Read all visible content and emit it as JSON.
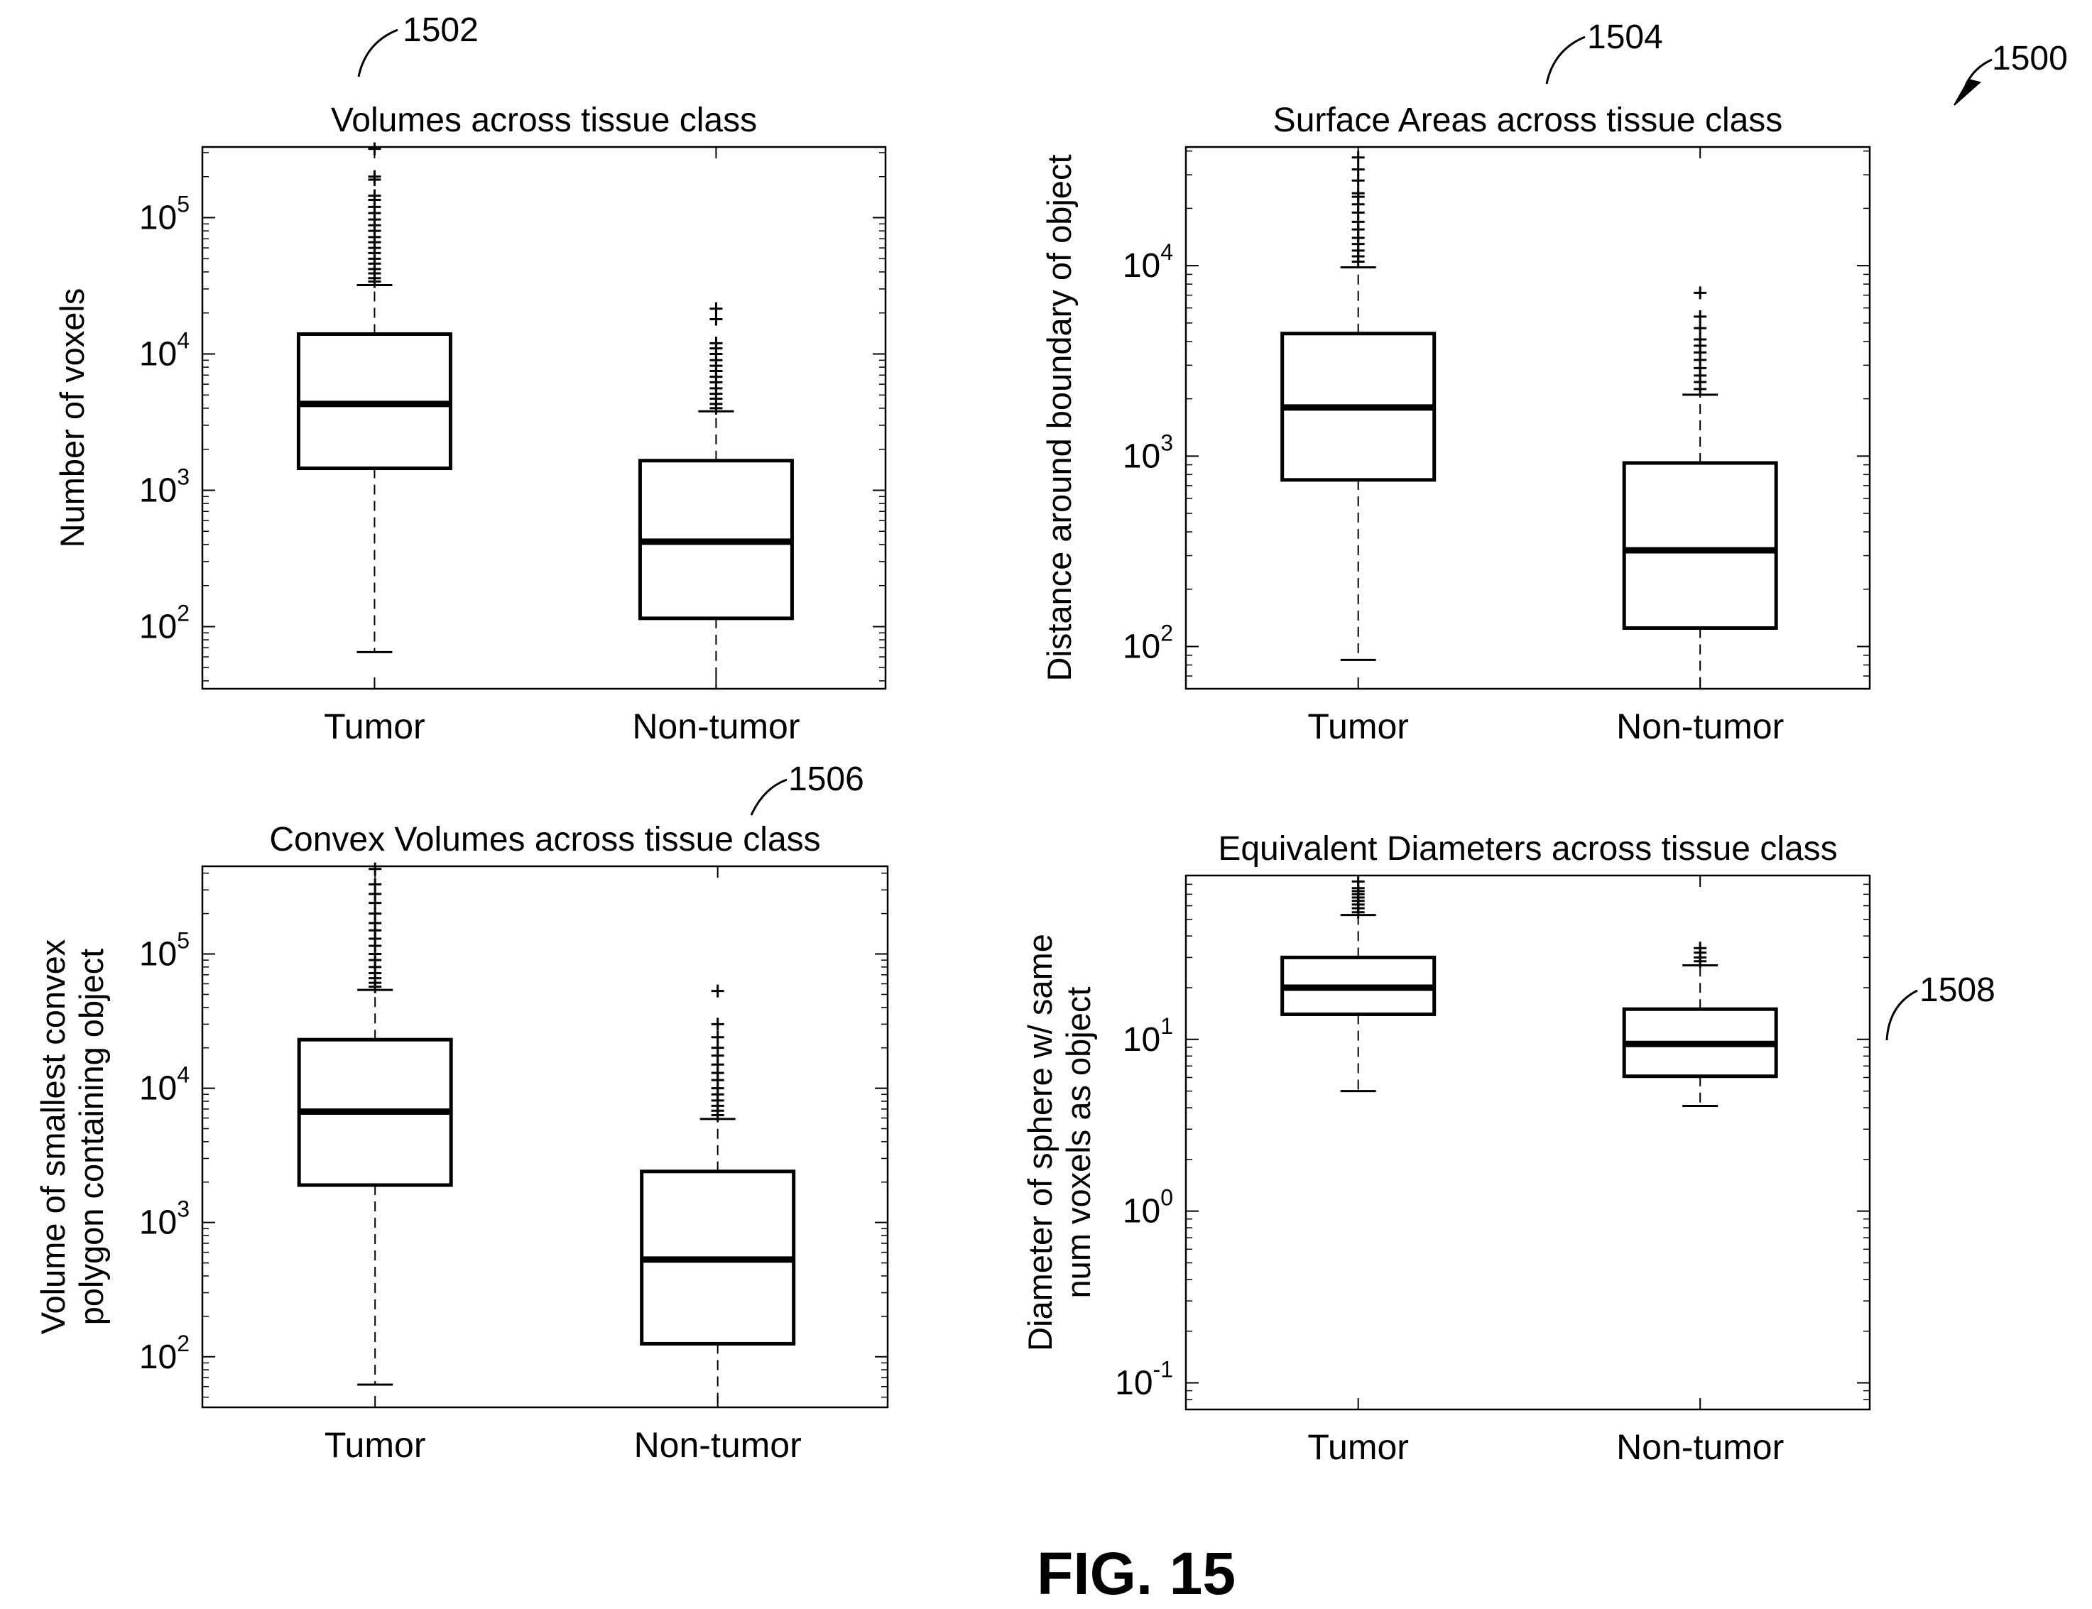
{
  "figure": {
    "ref_main": "1500",
    "caption": "FIG. 15"
  },
  "colors": {
    "ink": "#000000",
    "background": "#ffffff"
  },
  "chart_data": [
    {
      "type": "box",
      "ref": "1502",
      "title": "Volumes across tissue class",
      "xlabel": "",
      "ylabel": [
        "Number of voxels"
      ],
      "yscale": "log",
      "ylim": [
        35,
        330000
      ],
      "yticks": [
        {
          "value": 100,
          "base": "10",
          "exp": "2"
        },
        {
          "value": 1000,
          "base": "10",
          "exp": "3"
        },
        {
          "value": 10000,
          "base": "10",
          "exp": "4"
        },
        {
          "value": 100000,
          "base": "10",
          "exp": "5"
        }
      ],
      "categories": [
        "Tumor",
        "Non-tumor"
      ],
      "boxes": [
        {
          "label": "Tumor",
          "whisker_low": 65,
          "q1": 1450,
          "median": 4300,
          "q3": 14000,
          "whisker_high": 32000,
          "outliers": [
            34000,
            36000,
            39000,
            42000,
            46000,
            50000,
            55000,
            60000,
            66000,
            72000,
            80000,
            88000,
            97000,
            108000,
            120000,
            135000,
            145000,
            190000,
            200000,
            320000
          ]
        },
        {
          "label": "Non-tumor",
          "whisker_low": 35,
          "q1": 115,
          "median": 420,
          "q3": 1650,
          "whisker_high": 3800,
          "outliers": [
            4000,
            4300,
            4700,
            5100,
            5600,
            6200,
            6800,
            7500,
            8200,
            9000,
            10000,
            11000,
            12000,
            18000,
            21500
          ]
        }
      ]
    },
    {
      "type": "box",
      "ref": "1504",
      "title": "Surface Areas across tissue class",
      "xlabel": "",
      "ylabel": [
        "Distance around boundary of object"
      ],
      "yscale": "log",
      "ylim": [
        60,
        42000
      ],
      "yticks": [
        {
          "value": 100,
          "base": "10",
          "exp": "2"
        },
        {
          "value": 1000,
          "base": "10",
          "exp": "3"
        },
        {
          "value": 10000,
          "base": "10",
          "exp": "4"
        }
      ],
      "categories": [
        "Tumor",
        "Non-tumor"
      ],
      "boxes": [
        {
          "label": "Tumor",
          "whisker_low": 85,
          "q1": 750,
          "median": 1800,
          "q3": 4400,
          "whisker_high": 9800,
          "outliers": [
            10500,
            11200,
            12000,
            13000,
            14000,
            15500,
            17000,
            19000,
            21000,
            23000,
            24000,
            28000,
            32000,
            37000
          ]
        },
        {
          "label": "Non-tumor",
          "whisker_low": 60,
          "q1": 125,
          "median": 320,
          "q3": 920,
          "whisker_high": 2100,
          "outliers": [
            2250,
            2450,
            2650,
            2900,
            3200,
            3500,
            3800,
            4100,
            4700,
            5400,
            7200
          ]
        }
      ]
    },
    {
      "type": "box",
      "ref": "1506",
      "title": "Convex Volumes across tissue class",
      "xlabel": "",
      "ylabel": [
        "Volume of smallest convex",
        "polygon containing object"
      ],
      "yscale": "log",
      "ylim": [
        42,
        450000
      ],
      "yticks": [
        {
          "value": 100,
          "base": "10",
          "exp": "2"
        },
        {
          "value": 1000,
          "base": "10",
          "exp": "3"
        },
        {
          "value": 10000,
          "base": "10",
          "exp": "4"
        },
        {
          "value": 100000,
          "base": "10",
          "exp": "5"
        }
      ],
      "categories": [
        "Tumor",
        "Non-tumor"
      ],
      "boxes": [
        {
          "label": "Tumor",
          "whisker_low": 62,
          "q1": 1900,
          "median": 6700,
          "q3": 23000,
          "whisker_high": 54000,
          "outliers": [
            57000,
            61000,
            66000,
            72000,
            80000,
            90000,
            100000,
            115000,
            130000,
            150000,
            170000,
            200000,
            240000,
            280000,
            330000,
            430000
          ]
        },
        {
          "label": "Non-tumor",
          "whisker_low": 42,
          "q1": 125,
          "median": 530,
          "q3": 2400,
          "whisker_high": 5900,
          "outliers": [
            6300,
            6800,
            7400,
            8100,
            9000,
            10000,
            11500,
            13000,
            15000,
            17500,
            20000,
            24000,
            30000,
            53000
          ]
        }
      ]
    },
    {
      "type": "box",
      "ref": "1508",
      "title": "Equivalent Diameters across tissue class",
      "xlabel": "",
      "ylabel": [
        "Diameter of sphere w/ same",
        "num voxels as object"
      ],
      "yscale": "log",
      "ylim": [
        0.07,
        90
      ],
      "yticks": [
        {
          "value": 0.1,
          "base": "10",
          "exp": "-1"
        },
        {
          "value": 1,
          "base": "10",
          "exp": "0"
        },
        {
          "value": 10,
          "base": "10",
          "exp": "1"
        }
      ],
      "categories": [
        "Tumor",
        "Non-tumor"
      ],
      "boxes": [
        {
          "label": "Tumor",
          "whisker_low": 5,
          "q1": 14,
          "median": 20,
          "q3": 30,
          "whisker_high": 53,
          "outliers": [
            55,
            58,
            61,
            64,
            67,
            70,
            73,
            76,
            83
          ]
        },
        {
          "label": "Non-tumor",
          "whisker_low": 4.1,
          "q1": 6.1,
          "median": 9.4,
          "q3": 15,
          "whisker_high": 27,
          "outliers": [
            28.5,
            30,
            32,
            34
          ]
        }
      ]
    }
  ]
}
